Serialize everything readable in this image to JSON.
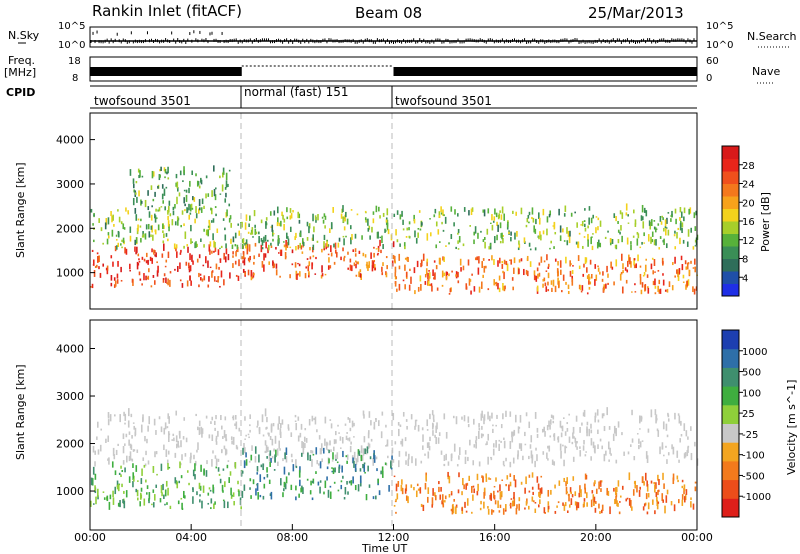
{
  "header": {
    "station": "Rankin Inlet (fitACF)",
    "beam": "Beam 08",
    "date": "25/Mar/2013"
  },
  "left_labels": {
    "nsky": "N.Sky",
    "freq": "Freq.",
    "freq_unit": "[MHz]",
    "cpid": "CPID"
  },
  "right_labels": {
    "nsearch": "N.Search",
    "nave": "Nave"
  },
  "noise_axis": {
    "left_ticks": [
      "10^5",
      "10^0"
    ],
    "right_ticks": [
      "10^5",
      "10^0"
    ]
  },
  "freq_axis": {
    "left_ticks": [
      "18",
      "8"
    ],
    "right_ticks": [
      "60",
      "0"
    ]
  },
  "cpid_segments": [
    {
      "label": "twofsound 3501",
      "start_hour": 0,
      "end_hour": 6
    },
    {
      "label": "normal (fast) 151",
      "start_hour": 6,
      "end_hour": 12
    },
    {
      "label": "twofsound 3501",
      "start_hour": 12,
      "end_hour": 24
    }
  ],
  "x_axis": {
    "label": "Time UT",
    "tick_labels": [
      "00:00",
      "04:00",
      "08:00",
      "12:00",
      "16:00",
      "20:00",
      "00:00"
    ]
  },
  "chart_data": [
    {
      "type": "heatmap",
      "title": "",
      "xlabel": "Time UT",
      "ylabel": "Slant Range [km]",
      "x_range_hours": [
        0,
        24
      ],
      "ylim": [
        180,
        4600
      ],
      "y_ticks": [
        "1000",
        "2000",
        "3000",
        "4000"
      ],
      "colorbar": {
        "label": "Power [dB]",
        "ticks": [
          "4",
          "8",
          "12",
          "16",
          "20",
          "24",
          "28"
        ],
        "range": [
          0,
          30
        ],
        "colors": [
          "#1f2fe6",
          "#1f4fa8",
          "#2f6e5a",
          "#3a8e56",
          "#57b13a",
          "#a7cf2a",
          "#f3d21c",
          "#f7a21b",
          "#f4781c",
          "#f0501c",
          "#e8251a",
          "#d81a1a"
        ]
      },
      "bands": [
        {
          "start_hour": 0.0,
          "end_hour": 6.0,
          "range_km": [
            650,
            1500
          ],
          "value": 26
        },
        {
          "start_hour": 6.0,
          "end_hour": 12.0,
          "range_km": [
            800,
            1600
          ],
          "value": 24
        },
        {
          "start_hour": 12.0,
          "end_hour": 24.0,
          "range_km": [
            500,
            1300
          ],
          "value": 22
        },
        {
          "start_hour": 0.0,
          "end_hour": 24.0,
          "range_km": [
            1500,
            2400
          ],
          "value": 12
        },
        {
          "start_hour": 1.5,
          "end_hour": 5.5,
          "range_km": [
            2400,
            3300
          ],
          "value": 10
        }
      ]
    },
    {
      "type": "heatmap",
      "title": "",
      "xlabel": "Time UT",
      "ylabel": "Slant Range [km]",
      "x_range_hours": [
        0,
        24
      ],
      "ylim": [
        180,
        4600
      ],
      "y_ticks": [
        "1000",
        "2000",
        "3000",
        "4000"
      ],
      "colorbar": {
        "label": "Velocity [m s^-1]",
        "ticks": [
          "1000",
          "500",
          "100",
          "25",
          "-25",
          "-100",
          "-500",
          "-1000"
        ],
        "range": [
          -1000,
          1000
        ],
        "colors": [
          "#1d3fb0",
          "#2e6fa8",
          "#3f8f6e",
          "#3fae3f",
          "#8fcf3a",
          "#c8c8c8",
          "#f3a520",
          "#f37a1c",
          "#ec4d1a",
          "#de1f1a"
        ]
      },
      "bands": [
        {
          "start_hour": 0.0,
          "end_hour": 24.0,
          "range_km": [
            1500,
            2600
          ],
          "value": 0
        },
        {
          "start_hour": 0.0,
          "end_hour": 6.0,
          "range_km": [
            600,
            1500
          ],
          "value": 200
        },
        {
          "start_hour": 6.0,
          "end_hour": 12.0,
          "range_km": [
            800,
            1800
          ],
          "value": 500
        },
        {
          "start_hour": 12.0,
          "end_hour": 24.0,
          "range_km": [
            500,
            1300
          ],
          "value": -300
        }
      ]
    }
  ]
}
